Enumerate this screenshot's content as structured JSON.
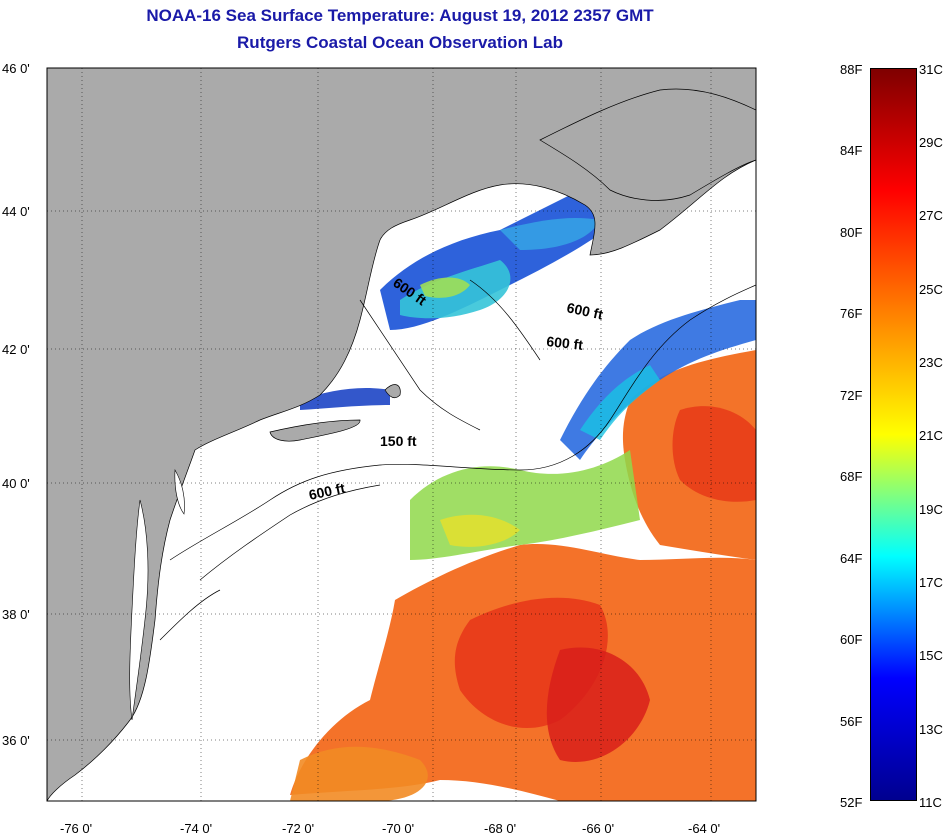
{
  "title": {
    "line1": "NOAA-16 Sea Surface Temperature:  August 19, 2012 2357 GMT",
    "line2": "Rutgers Coastal Ocean Observation Lab"
  },
  "map": {
    "lat_labels": [
      "46 0'",
      "44 0'",
      "42 0'",
      "40 0'",
      "38 0'",
      "36 0'"
    ],
    "lon_labels": [
      "-76 0'",
      "-74 0'",
      "-72 0'",
      "-70 0'",
      "-68 0'",
      "-66 0'",
      "-64 0'"
    ],
    "contour_labels": [
      "600 ft",
      "600 ft",
      "600 ft",
      "150 ft",
      "600 ft"
    ],
    "colors": {
      "land": "#aaaaaa",
      "no_data": "#ffffff",
      "grid": "#000000"
    }
  },
  "colorbar": {
    "fahrenheit": [
      "88F",
      "84F",
      "80F",
      "76F",
      "72F",
      "68F",
      "64F",
      "60F",
      "56F",
      "52F"
    ],
    "celsius": [
      "31C",
      "29C",
      "27C",
      "25C",
      "23C",
      "21C",
      "19C",
      "17C",
      "15C",
      "13C",
      "11C"
    ],
    "gradient": [
      "#7f0000",
      "#ff0000",
      "#ff8000",
      "#ffff00",
      "#00ffff",
      "#0000ff",
      "#00008f"
    ]
  }
}
